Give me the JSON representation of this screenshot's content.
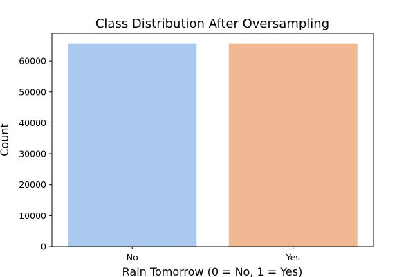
{
  "chart_data": {
    "type": "bar",
    "title": "Class Distribution After Oversampling",
    "xlabel": "Rain Tomorrow (0 = No, 1 = Yes)",
    "ylabel": "Count",
    "categories": [
      "No",
      "Yes"
    ],
    "values": [
      65700,
      65700
    ],
    "colors": [
      "#abc9ee",
      "#f1b893"
    ],
    "ylim": [
      0,
      68990
    ],
    "yticks": [
      0,
      10000,
      20000,
      30000,
      40000,
      50000,
      60000
    ],
    "grid": false,
    "legend": "none"
  }
}
